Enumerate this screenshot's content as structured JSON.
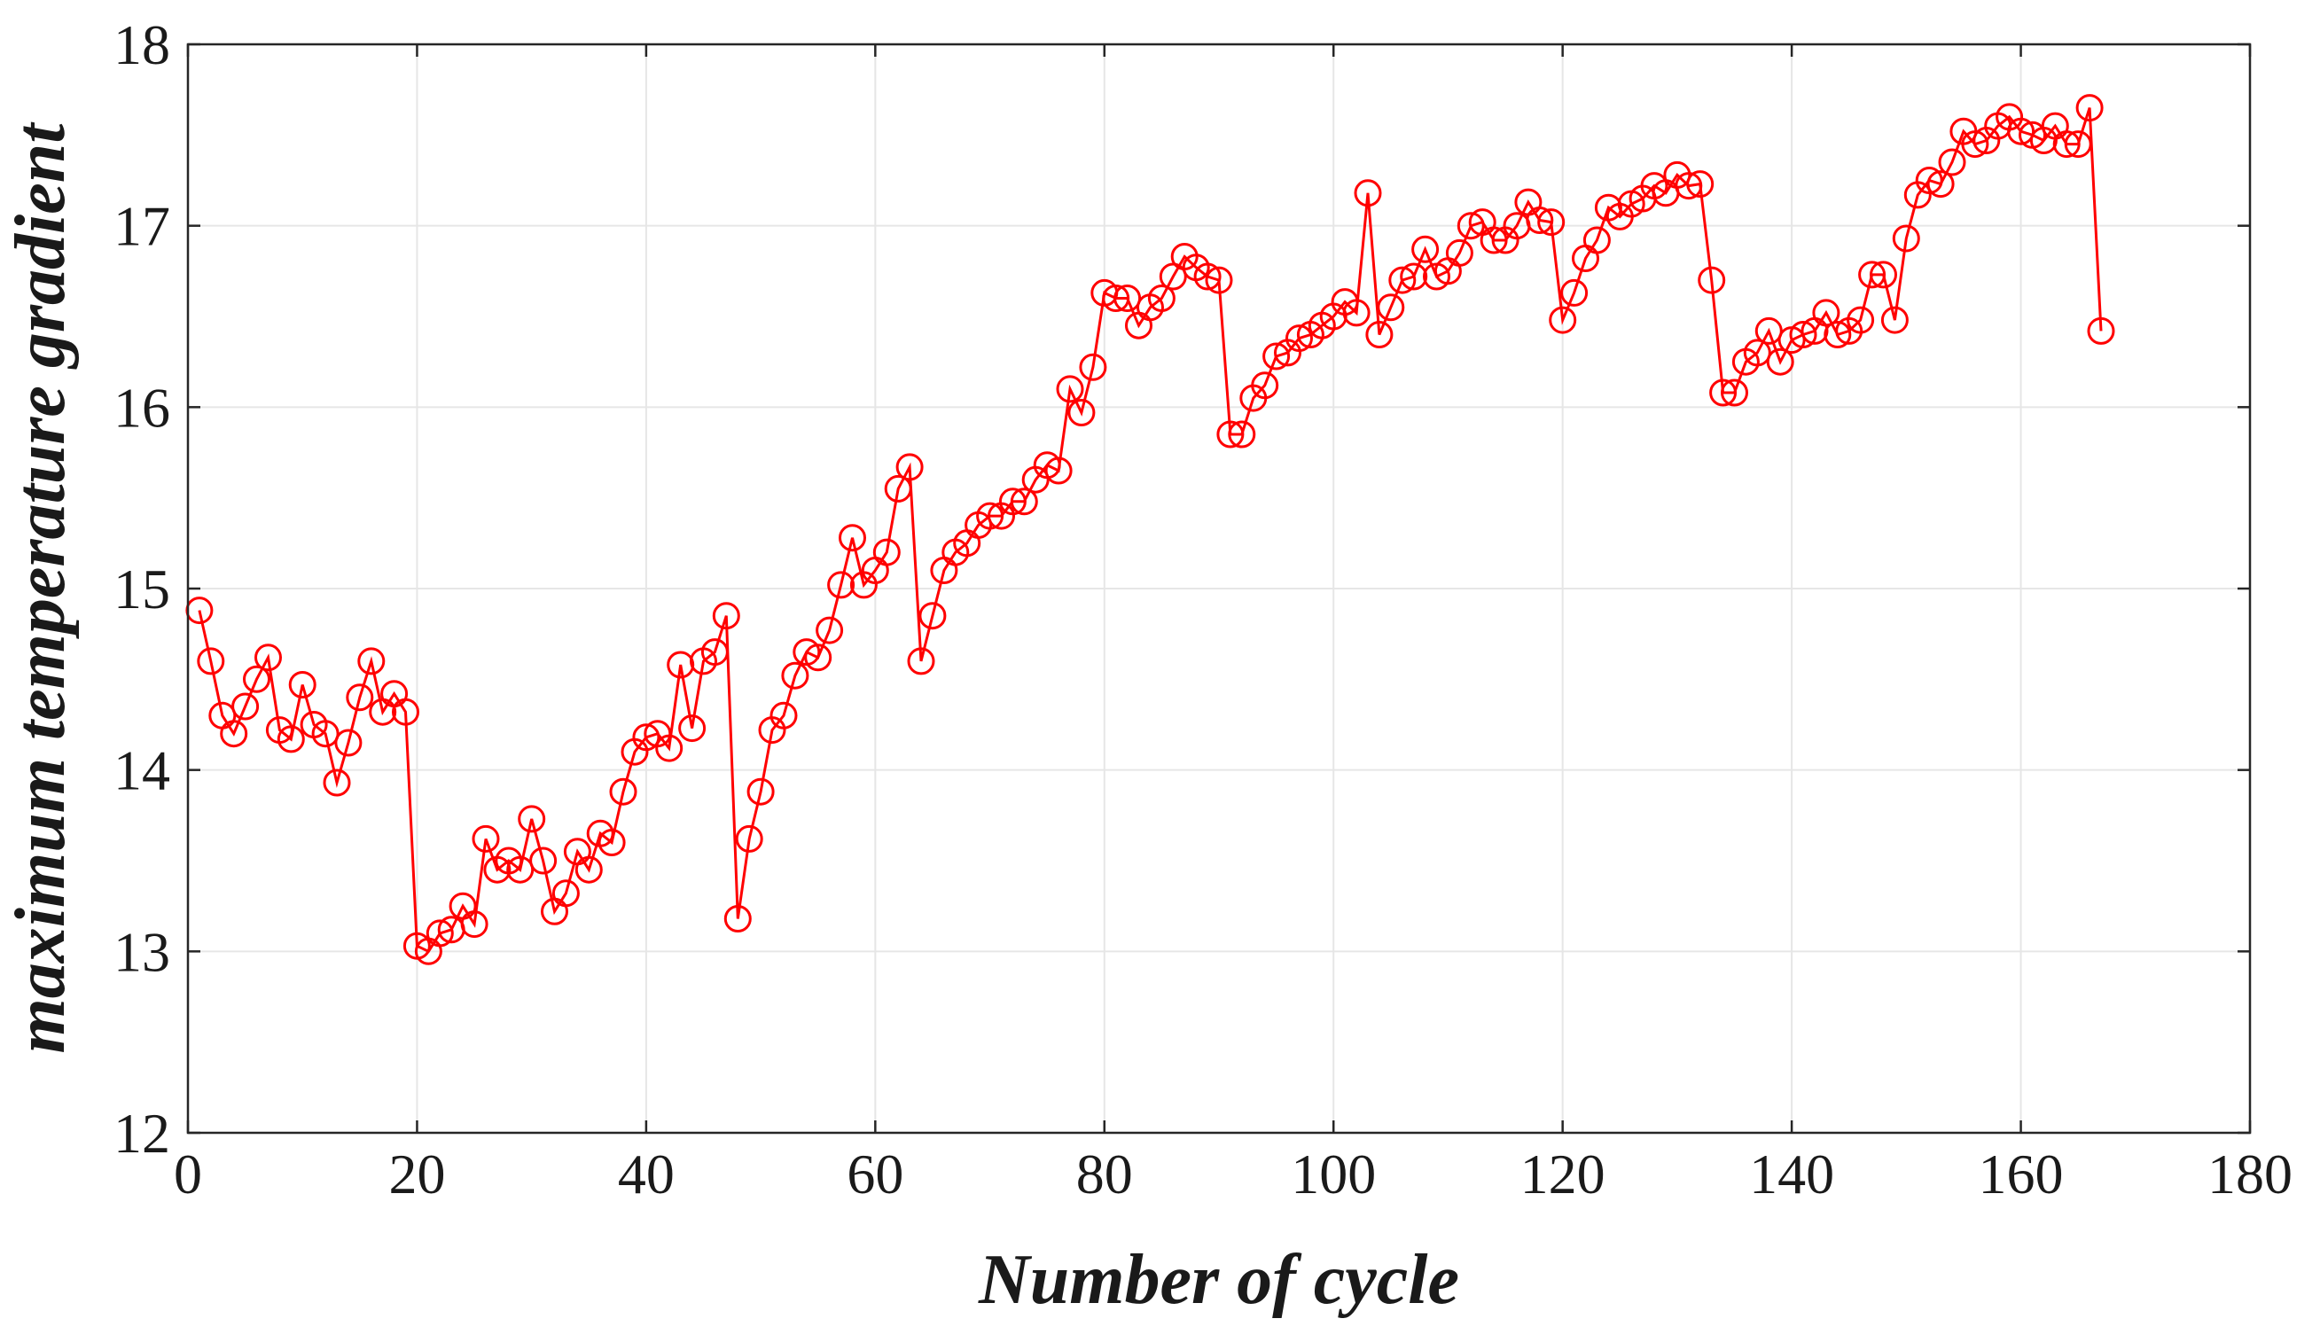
{
  "chart_data": {
    "type": "line",
    "title": "",
    "xlabel": "Number of cycle",
    "ylabel": "maximum temperature gradient",
    "xlim": [
      0,
      180
    ],
    "ylim": [
      12,
      18
    ],
    "xticks": [
      0,
      20,
      40,
      60,
      80,
      100,
      120,
      140,
      160,
      180
    ],
    "yticks": [
      12,
      13,
      14,
      15,
      16,
      17,
      18
    ],
    "grid": true,
    "line_color": "#ff0000",
    "marker": "circle",
    "series": [
      {
        "name": "maximum temperature gradient",
        "x": [
          1,
          2,
          3,
          4,
          5,
          6,
          7,
          8,
          9,
          10,
          11,
          12,
          13,
          14,
          15,
          16,
          17,
          18,
          19,
          20,
          21,
          22,
          23,
          24,
          25,
          26,
          27,
          28,
          29,
          30,
          31,
          32,
          33,
          34,
          35,
          36,
          37,
          38,
          39,
          40,
          41,
          42,
          43,
          44,
          45,
          46,
          47,
          48,
          49,
          50,
          51,
          52,
          53,
          54,
          55,
          56,
          57,
          58,
          59,
          60,
          61,
          62,
          63,
          64,
          65,
          66,
          67,
          68,
          69,
          70,
          71,
          72,
          73,
          74,
          75,
          76,
          77,
          78,
          79,
          80,
          81,
          82,
          83,
          84,
          85,
          86,
          87,
          88,
          89,
          90,
          91,
          92,
          93,
          94,
          95,
          96,
          97,
          98,
          99,
          100,
          101,
          102,
          103,
          104,
          105,
          106,
          107,
          108,
          109,
          110,
          111,
          112,
          113,
          114,
          115,
          116,
          117,
          118,
          119,
          120,
          121,
          122,
          123,
          124,
          125,
          126,
          127,
          128,
          129,
          130,
          131,
          132,
          133,
          134,
          135,
          136,
          137,
          138,
          139,
          140,
          141,
          142,
          143,
          144,
          145,
          146,
          147,
          148,
          149,
          150,
          151,
          152,
          153,
          154,
          155,
          156,
          157,
          158,
          159,
          160,
          161,
          162,
          163,
          164,
          165,
          166,
          167
        ],
        "values": [
          14.88,
          14.6,
          14.3,
          14.2,
          14.35,
          14.5,
          14.62,
          14.22,
          14.17,
          14.47,
          14.25,
          14.2,
          13.93,
          14.15,
          14.4,
          14.6,
          14.32,
          14.42,
          14.32,
          13.03,
          13.0,
          13.1,
          13.12,
          13.25,
          13.15,
          13.62,
          13.45,
          13.5,
          13.45,
          13.73,
          13.5,
          13.22,
          13.32,
          13.55,
          13.45,
          13.65,
          13.6,
          13.88,
          14.1,
          14.18,
          14.2,
          14.12,
          14.58,
          14.23,
          14.6,
          14.65,
          14.85,
          13.18,
          13.62,
          13.88,
          14.22,
          14.3,
          14.52,
          14.65,
          14.62,
          14.77,
          15.02,
          15.28,
          15.02,
          15.1,
          15.2,
          15.55,
          15.67,
          14.6,
          14.85,
          15.1,
          15.2,
          15.25,
          15.35,
          15.4,
          15.4,
          15.48,
          15.48,
          15.6,
          15.68,
          15.65,
          16.1,
          15.97,
          16.22,
          16.63,
          16.6,
          16.6,
          16.45,
          16.55,
          16.6,
          16.72,
          16.83,
          16.77,
          16.72,
          16.7,
          15.85,
          15.85,
          16.05,
          16.12,
          16.28,
          16.3,
          16.38,
          16.4,
          16.45,
          16.5,
          16.58,
          16.52,
          17.18,
          16.4,
          16.55,
          16.7,
          16.72,
          16.87,
          16.72,
          16.75,
          16.85,
          17.0,
          17.02,
          16.92,
          16.92,
          17.0,
          17.13,
          17.03,
          17.02,
          16.48,
          16.63,
          16.82,
          16.92,
          17.1,
          17.05,
          17.12,
          17.15,
          17.22,
          17.18,
          17.28,
          17.22,
          17.23,
          16.7,
          16.08,
          16.08,
          16.25,
          16.3,
          16.42,
          16.25,
          16.37,
          16.4,
          16.42,
          16.52,
          16.4,
          16.42,
          16.48,
          16.73,
          16.73,
          16.48,
          16.93,
          17.17,
          17.25,
          17.23,
          17.35,
          17.52,
          17.45,
          17.47,
          17.55,
          17.6,
          17.52,
          17.5,
          17.47,
          17.55,
          17.45,
          17.45,
          17.65,
          16.42
        ]
      }
    ]
  }
}
